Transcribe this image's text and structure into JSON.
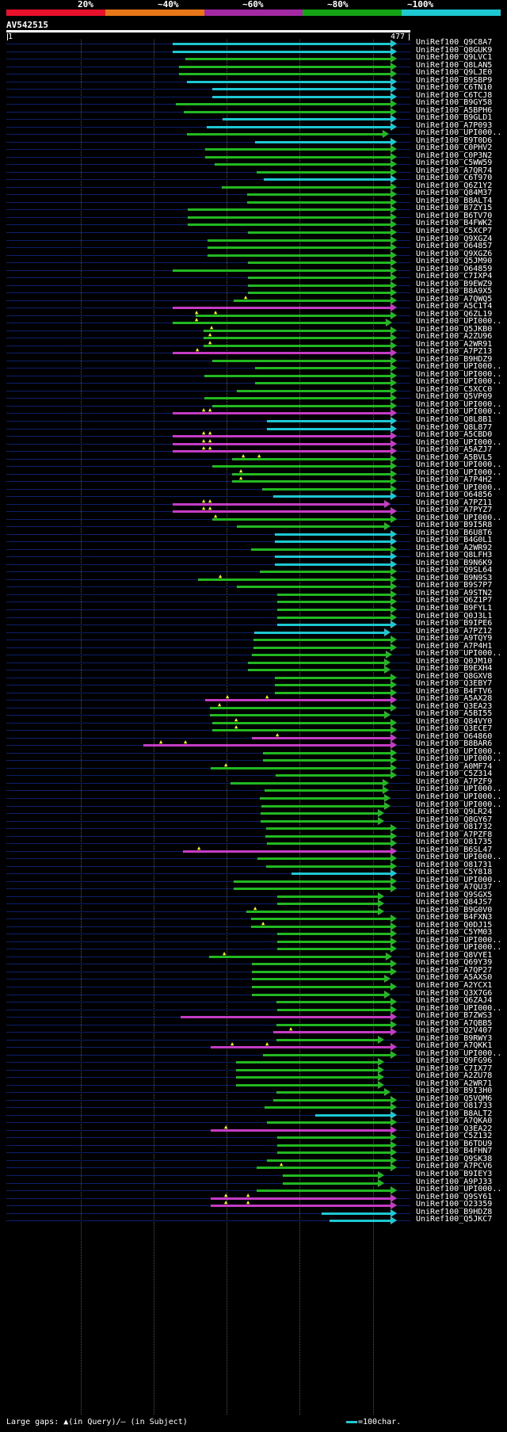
{
  "scale": {
    "labels": [
      "20%",
      "~40%",
      "~60%",
      "~80%",
      "~100%"
    ],
    "colors": [
      "#e8102a",
      "#e8771a",
      "#a32aa3",
      "#14a314",
      "#1ec8d2"
    ]
  },
  "query": {
    "name": "AV542515",
    "start": "1",
    "end": "477"
  },
  "color_map": {
    "c": "#1ec8d2",
    "g": "#22b822",
    "m": "#c43bc4"
  },
  "hits": [
    {
      "id": "UniRef100_Q9C8A7",
      "s": 218,
      "e": 500,
      "c": "c"
    },
    {
      "id": "UniRef100_Q8GUK9",
      "s": 218,
      "e": 500,
      "c": "c"
    },
    {
      "id": "UniRef100_Q9LVC1",
      "s": 234,
      "e": 500,
      "c": "g"
    },
    {
      "id": "UniRef100_Q8LAN5",
      "s": 226,
      "e": 500,
      "c": "g"
    },
    {
      "id": "UniRef100_Q9LJE0",
      "s": 226,
      "e": 500,
      "c": "g"
    },
    {
      "id": "UniRef100_B9SBP9",
      "s": 236,
      "e": 500,
      "c": "c"
    },
    {
      "id": "UniRef100_C6TN10",
      "s": 268,
      "e": 500,
      "c": "c"
    },
    {
      "id": "UniRef100_C6TCJ8",
      "s": 268,
      "e": 500,
      "c": "c"
    },
    {
      "id": "UniRef100_B9GY58",
      "s": 222,
      "e": 500,
      "c": "g"
    },
    {
      "id": "UniRef100_A5BPH6",
      "s": 232,
      "e": 500,
      "c": "g"
    },
    {
      "id": "UniRef100_B9GLD1",
      "s": 281,
      "e": 500,
      "c": "c"
    },
    {
      "id": "UniRef100_A7P093",
      "s": 261,
      "e": 500,
      "c": "c"
    },
    {
      "id": "UniRef100_UPI000..",
      "s": 236,
      "e": 490,
      "c": "g"
    },
    {
      "id": "UniRef100_B9T0D6",
      "s": 322,
      "e": 500,
      "c": "c"
    },
    {
      "id": "UniRef100_C0PHV2",
      "s": 259,
      "e": 500,
      "c": "g"
    },
    {
      "id": "UniRef100_C0P3N2",
      "s": 259,
      "e": 500,
      "c": "g"
    },
    {
      "id": "UniRef100_C5WW59",
      "s": 271,
      "e": 500,
      "c": "g"
    },
    {
      "id": "UniRef100_A7QR74",
      "s": 324,
      "e": 500,
      "c": "g"
    },
    {
      "id": "UniRef100_C6T970",
      "s": 333,
      "e": 500,
      "c": "c"
    },
    {
      "id": "UniRef100_Q6Z1Y2",
      "s": 280,
      "e": 500,
      "c": "g"
    },
    {
      "id": "UniRef100_Q84M37",
      "s": 312,
      "e": 500,
      "c": "g"
    },
    {
      "id": "UniRef100_B8ALT4",
      "s": 312,
      "e": 500,
      "c": "g"
    },
    {
      "id": "UniRef100_B7ZY15",
      "s": 237,
      "e": 500,
      "c": "g"
    },
    {
      "id": "UniRef100_B6TV70",
      "s": 237,
      "e": 500,
      "c": "g"
    },
    {
      "id": "UniRef100_B4FWK2",
      "s": 237,
      "e": 500,
      "c": "g"
    },
    {
      "id": "UniRef100_C5XCP7",
      "s": 313,
      "e": 500,
      "c": "g"
    },
    {
      "id": "UniRef100_Q9XGZ4",
      "s": 262,
      "e": 500,
      "c": "g"
    },
    {
      "id": "UniRef100_O64857",
      "s": 262,
      "e": 500,
      "c": "g"
    },
    {
      "id": "UniRef100_Q9XGZ6",
      "s": 262,
      "e": 500,
      "c": "g"
    },
    {
      "id": "UniRef100_Q5JM90",
      "s": 313,
      "e": 500,
      "c": "g"
    },
    {
      "id": "UniRef100_O64859",
      "s": 218,
      "e": 500,
      "c": "g"
    },
    {
      "id": "UniRef100_C7IXP4",
      "s": 313,
      "e": 500,
      "c": "g"
    },
    {
      "id": "UniRef100_B9EWZ9",
      "s": 313,
      "e": 500,
      "c": "g"
    },
    {
      "id": "UniRef100_B8A9X5",
      "s": 313,
      "e": 500,
      "c": "g"
    },
    {
      "id": "UniRef100_A7QWQ5",
      "s": 295,
      "e": 500,
      "c": "g",
      "gaps": [
        308
      ]
    },
    {
      "id": "UniRef100_A5C1T4",
      "s": 218,
      "e": 500,
      "c": "m"
    },
    {
      "id": "UniRef100_Q6ZL19",
      "s": 247,
      "e": 500,
      "c": "g",
      "gaps": [
        246,
        270
      ]
    },
    {
      "id": "UniRef100_UPI000..",
      "s": 218,
      "e": 494,
      "c": "g",
      "gaps": [
        246
      ]
    },
    {
      "id": "UniRef100_Q5JKB0",
      "s": 257,
      "e": 500,
      "c": "g",
      "gaps": [
        265
      ]
    },
    {
      "id": "UniRef100_A2ZU96",
      "s": 257,
      "e": 500,
      "c": "g",
      "gaps": [
        263
      ]
    },
    {
      "id": "UniRef100_A2WR91",
      "s": 257,
      "e": 500,
      "c": "g",
      "gaps": [
        263
      ]
    },
    {
      "id": "UniRef100_A7PZ13",
      "s": 218,
      "e": 500,
      "c": "m",
      "gaps": [
        247
      ]
    },
    {
      "id": "UniRef100_B9HDZ9",
      "s": 268,
      "e": 500,
      "c": "g"
    },
    {
      "id": "UniRef100_UPI000..",
      "s": 322,
      "e": 500,
      "c": "g"
    },
    {
      "id": "UniRef100_UPI000..",
      "s": 258,
      "e": 500,
      "c": "g"
    },
    {
      "id": "UniRef100_UPI000..",
      "s": 322,
      "e": 500,
      "c": "g"
    },
    {
      "id": "UniRef100_C5XCC0",
      "s": 299,
      "e": 500,
      "c": "g"
    },
    {
      "id": "UniRef100_Q5VP09",
      "s": 258,
      "e": 500,
      "c": "g"
    },
    {
      "id": "UniRef100_UPI000..",
      "s": 268,
      "e": 500,
      "c": "g"
    },
    {
      "id": "UniRef100_UPI000..",
      "s": 218,
      "e": 500,
      "c": "m",
      "gaps": [
        255,
        263
      ]
    },
    {
      "id": "UniRef100_Q8L8B1",
      "s": 337,
      "e": 500,
      "c": "c"
    },
    {
      "id": "UniRef100_Q8L877",
      "s": 337,
      "e": 500,
      "c": "c"
    },
    {
      "id": "UniRef100_A5CBD0",
      "s": 218,
      "e": 500,
      "c": "m",
      "gaps": [
        255,
        263
      ]
    },
    {
      "id": "UniRef100_UPI000..",
      "s": 218,
      "e": 500,
      "c": "m",
      "gaps": [
        255,
        263
      ]
    },
    {
      "id": "UniRef100_A5AZJ7",
      "s": 218,
      "e": 500,
      "c": "m",
      "gaps": [
        255,
        263
      ]
    },
    {
      "id": "UniRef100_A5BVL5",
      "s": 293,
      "e": 500,
      "c": "g",
      "gaps": [
        305,
        325
      ]
    },
    {
      "id": "UniRef100_UPI000..",
      "s": 268,
      "e": 500,
      "c": "g"
    },
    {
      "id": "UniRef100_UPI000..",
      "s": 293,
      "e": 500,
      "c": "g",
      "gaps": [
        302
      ]
    },
    {
      "id": "UniRef100_A7P4H2",
      "s": 293,
      "e": 500,
      "c": "g",
      "gaps": [
        302
      ]
    },
    {
      "id": "UniRef100_UPI000..",
      "s": 331,
      "e": 500,
      "c": "g"
    },
    {
      "id": "UniRef100_O64856",
      "s": 345,
      "e": 500,
      "c": "c"
    },
    {
      "id": "UniRef100_A7PZ11",
      "s": 218,
      "e": 492,
      "c": "m",
      "gaps": [
        255,
        263
      ]
    },
    {
      "id": "UniRef100_A7PYZ7",
      "s": 218,
      "e": 500,
      "c": "m",
      "gaps": [
        255,
        263
      ]
    },
    {
      "id": "UniRef100_UPI000..",
      "s": 268,
      "e": 500,
      "c": "g",
      "gaps": [
        270
      ]
    },
    {
      "id": "UniRef100_B9I5R8",
      "s": 299,
      "e": 492,
      "c": "g"
    },
    {
      "id": "UniRef100_B6U8T6",
      "s": 347,
      "e": 500,
      "c": "c"
    },
    {
      "id": "UniRef100_B4G0L1",
      "s": 347,
      "e": 500,
      "c": "c"
    },
    {
      "id": "UniRef100_A2WR92",
      "s": 317,
      "e": 500,
      "c": "g"
    },
    {
      "id": "UniRef100_Q8LFH3",
      "s": 347,
      "e": 500,
      "c": "c"
    },
    {
      "id": "UniRef100_B9N6K9",
      "s": 347,
      "e": 500,
      "c": "c"
    },
    {
      "id": "UniRef100_Q9SL64",
      "s": 328,
      "e": 500,
      "c": "g"
    },
    {
      "id": "UniRef100_B9N9S3",
      "s": 250,
      "e": 500,
      "c": "g",
      "gaps": [
        276
      ]
    },
    {
      "id": "UniRef100_B9S7P7",
      "s": 299,
      "e": 500,
      "c": "g"
    },
    {
      "id": "UniRef100_A9STN2",
      "s": 350,
      "e": 500,
      "c": "g"
    },
    {
      "id": "UniRef100_Q6Z1P7",
      "s": 350,
      "e": 500,
      "c": "g"
    },
    {
      "id": "UniRef100_B9FYL1",
      "s": 350,
      "e": 500,
      "c": "g"
    },
    {
      "id": "UniRef100_Q0J3L1",
      "s": 350,
      "e": 500,
      "c": "g"
    },
    {
      "id": "UniRef100_B9IPE6",
      "s": 350,
      "e": 500,
      "c": "c"
    },
    {
      "id": "UniRef100_A7PZ12",
      "s": 321,
      "e": 492,
      "c": "c"
    },
    {
      "id": "UniRef100_A9TQY9",
      "s": 320,
      "e": 500,
      "c": "g"
    },
    {
      "id": "UniRef100_A7P4H1",
      "s": 320,
      "e": 500,
      "c": "g"
    },
    {
      "id": "UniRef100_UPI000..",
      "s": 318,
      "e": 494,
      "c": "g"
    },
    {
      "id": "UniRef100_Q0JM10",
      "s": 313,
      "e": 492,
      "c": "g"
    },
    {
      "id": "UniRef100_B9EXH4",
      "s": 313,
      "e": 492,
      "c": "g"
    },
    {
      "id": "UniRef100_Q8GXV8",
      "s": 347,
      "e": 500,
      "c": "g"
    },
    {
      "id": "UniRef100_Q3EBY7",
      "s": 347,
      "e": 500,
      "c": "g"
    },
    {
      "id": "UniRef100_B4FTV6",
      "s": 347,
      "e": 500,
      "c": "g"
    },
    {
      "id": "UniRef100_A5AX28",
      "s": 259,
      "e": 500,
      "c": "m",
      "gaps": [
        285,
        335
      ]
    },
    {
      "id": "UniRef100_Q3EA23",
      "s": 265,
      "e": 500,
      "c": "g",
      "gaps": [
        275
      ]
    },
    {
      "id": "UniRef100_A5BI55",
      "s": 265,
      "e": 492,
      "c": "g"
    },
    {
      "id": "UniRef100_Q84VY0",
      "s": 268,
      "e": 500,
      "c": "g",
      "gaps": [
        296
      ]
    },
    {
      "id": "UniRef100_Q3ECE7",
      "s": 268,
      "e": 500,
      "c": "g",
      "gaps": [
        296
      ]
    },
    {
      "id": "UniRef100_O64860",
      "s": 318,
      "e": 500,
      "c": "m",
      "gaps": [
        348
      ]
    },
    {
      "id": "UniRef100_B8BAR6",
      "s": 181,
      "e": 500,
      "c": "m",
      "gaps": [
        201,
        232
      ]
    },
    {
      "id": "UniRef100_UPI000..",
      "s": 332,
      "e": 500,
      "c": "g"
    },
    {
      "id": "UniRef100_UPI000..",
      "s": 332,
      "e": 500,
      "c": "g"
    },
    {
      "id": "UniRef100_A0MF74",
      "s": 266,
      "e": 500,
      "c": "g",
      "gaps": [
        283
      ]
    },
    {
      "id": "UniRef100_C5Z314",
      "s": 348,
      "e": 500,
      "c": "g"
    },
    {
      "id": "UniRef100_A7PZF9",
      "s": 291,
      "e": 490,
      "c": "g"
    },
    {
      "id": "UniRef100_UPI000..",
      "s": 334,
      "e": 490,
      "c": "g"
    },
    {
      "id": "UniRef100_UPI000..",
      "s": 328,
      "e": 492,
      "c": "g"
    },
    {
      "id": "UniRef100_UPI000..",
      "s": 330,
      "e": 492,
      "c": "g"
    },
    {
      "id": "UniRef100_Q9LR24",
      "s": 329,
      "e": 484,
      "c": "g"
    },
    {
      "id": "UniRef100_Q8GY67",
      "s": 329,
      "e": 484,
      "c": "g"
    },
    {
      "id": "UniRef100_O81732",
      "s": 336,
      "e": 500,
      "c": "g"
    },
    {
      "id": "UniRef100_A7PZF8",
      "s": 335,
      "e": 500,
      "c": "g"
    },
    {
      "id": "UniRef100_O81735",
      "s": 337,
      "e": 500,
      "c": "g"
    },
    {
      "id": "UniRef100_B6SL47",
      "s": 231,
      "e": 500,
      "c": "m",
      "gaps": [
        249
      ]
    },
    {
      "id": "UniRef100_UPI000..",
      "s": 325,
      "e": 500,
      "c": "g"
    },
    {
      "id": "UniRef100_O81731",
      "s": 336,
      "e": 500,
      "c": "g"
    },
    {
      "id": "UniRef100_C5Y818",
      "s": 368,
      "e": 500,
      "c": "c"
    },
    {
      "id": "UniRef100_UPI000..",
      "s": 295,
      "e": 500,
      "c": "g"
    },
    {
      "id": "UniRef100_A7QU37",
      "s": 295,
      "e": 500,
      "c": "g"
    },
    {
      "id": "UniRef100_Q9SGX5",
      "s": 350,
      "e": 484,
      "c": "g"
    },
    {
      "id": "UniRef100_Q84JS7",
      "s": 350,
      "e": 484,
      "c": "g"
    },
    {
      "id": "UniRef100_B9G0V0",
      "s": 311,
      "e": 484,
      "c": "g",
      "gaps": [
        320
      ]
    },
    {
      "id": "UniRef100_B4FXN3",
      "s": 317,
      "e": 500,
      "c": "g"
    },
    {
      "id": "UniRef100_Q0DJ15",
      "s": 317,
      "e": 500,
      "c": "g",
      "gaps": [
        330
      ]
    },
    {
      "id": "UniRef100_C5YM03",
      "s": 350,
      "e": 500,
      "c": "g"
    },
    {
      "id": "UniRef100_UPI000..",
      "s": 350,
      "e": 500,
      "c": "g"
    },
    {
      "id": "UniRef100_UPI000..",
      "s": 350,
      "e": 500,
      "c": "g"
    },
    {
      "id": "UniRef100_Q8VYE1",
      "s": 264,
      "e": 494,
      "c": "g",
      "gaps": [
        281
      ]
    },
    {
      "id": "UniRef100_Q69Y39",
      "s": 318,
      "e": 500,
      "c": "g"
    },
    {
      "id": "UniRef100_A7QP27",
      "s": 318,
      "e": 500,
      "c": "g"
    },
    {
      "id": "UniRef100_A5AXS0",
      "s": 318,
      "e": 492,
      "c": "g"
    },
    {
      "id": "UniRef100_A2YCX1",
      "s": 318,
      "e": 500,
      "c": "g"
    },
    {
      "id": "UniRef100_Q3X7G6",
      "s": 318,
      "e": 492,
      "c": "g"
    },
    {
      "id": "UniRef100_Q6ZAJ4",
      "s": 349,
      "e": 500,
      "c": "g"
    },
    {
      "id": "UniRef100_UPI000..",
      "s": 350,
      "e": 500,
      "c": "g"
    },
    {
      "id": "UniRef100_B7ZWS3",
      "s": 228,
      "e": 500,
      "c": "m"
    },
    {
      "id": "UniRef100_A7QBB5",
      "s": 349,
      "e": 500,
      "c": "g"
    },
    {
      "id": "UniRef100_Q2V407",
      "s": 345,
      "e": 500,
      "c": "m",
      "gaps": [
        365
      ]
    },
    {
      "id": "UniRef100_B9RWY3",
      "s": 349,
      "e": 484,
      "c": "g"
    },
    {
      "id": "UniRef100_A7QKK1",
      "s": 266,
      "e": 500,
      "c": "m",
      "gaps": [
        291,
        335
      ]
    },
    {
      "id": "UniRef100_UPI000..",
      "s": 332,
      "e": 500,
      "c": "g"
    },
    {
      "id": "UniRef100_Q9FG96",
      "s": 298,
      "e": 484,
      "c": "g"
    },
    {
      "id": "UniRef100_C7IX77",
      "s": 298,
      "e": 484,
      "c": "g"
    },
    {
      "id": "UniRef100_A2ZU78",
      "s": 298,
      "e": 484,
      "c": "g"
    },
    {
      "id": "UniRef100_A2WR71",
      "s": 298,
      "e": 484,
      "c": "g"
    },
    {
      "id": "UniRef100_B9I3H0",
      "s": 349,
      "e": 492,
      "c": "g"
    },
    {
      "id": "UniRef100_Q5VQM6",
      "s": 345,
      "e": 500,
      "c": "g"
    },
    {
      "id": "UniRef100_O81733",
      "s": 334,
      "e": 500,
      "c": "g"
    },
    {
      "id": "UniRef100_B8ALT2",
      "s": 398,
      "e": 500,
      "c": "c"
    },
    {
      "id": "UniRef100_A7QKA0",
      "s": 337,
      "e": 500,
      "c": "g"
    },
    {
      "id": "UniRef100_Q3EA22",
      "s": 266,
      "e": 500,
      "c": "m",
      "gaps": [
        283
      ]
    },
    {
      "id": "UniRef100_C5Z132",
      "s": 350,
      "e": 500,
      "c": "g"
    },
    {
      "id": "UniRef100_B6TDU9",
      "s": 350,
      "e": 500,
      "c": "g"
    },
    {
      "id": "UniRef100_B4FHN7",
      "s": 350,
      "e": 500,
      "c": "g"
    },
    {
      "id": "UniRef100_Q9SK38",
      "s": 337,
      "e": 500,
      "c": "g"
    },
    {
      "id": "UniRef100_A7PCV6",
      "s": 324,
      "e": 500,
      "c": "g",
      "gaps": [
        353
      ]
    },
    {
      "id": "UniRef100_B9IEY3",
      "s": 357,
      "e": 484,
      "c": "g"
    },
    {
      "id": "UniRef100_A9PJ33",
      "s": 357,
      "e": 484,
      "c": "g"
    },
    {
      "id": "UniRef100_UPI000..",
      "s": 324,
      "e": 500,
      "c": "g"
    },
    {
      "id": "UniRef100_Q9SY61",
      "s": 266,
      "e": 500,
      "c": "m",
      "gaps": [
        283,
        311
      ]
    },
    {
      "id": "UniRef100_O23359",
      "s": 266,
      "e": 500,
      "c": "m",
      "gaps": [
        283,
        311
      ]
    },
    {
      "id": "UniRef100_B9HDZ8",
      "s": 406,
      "e": 500,
      "c": "c"
    },
    {
      "id": "UniRef100_Q5JKC7",
      "s": 416,
      "e": 500,
      "c": "c"
    }
  ],
  "legend": {
    "gaps_text": "Large gaps: ▲(in Query)/– (in Subject)",
    "scale_text": "=100char."
  }
}
